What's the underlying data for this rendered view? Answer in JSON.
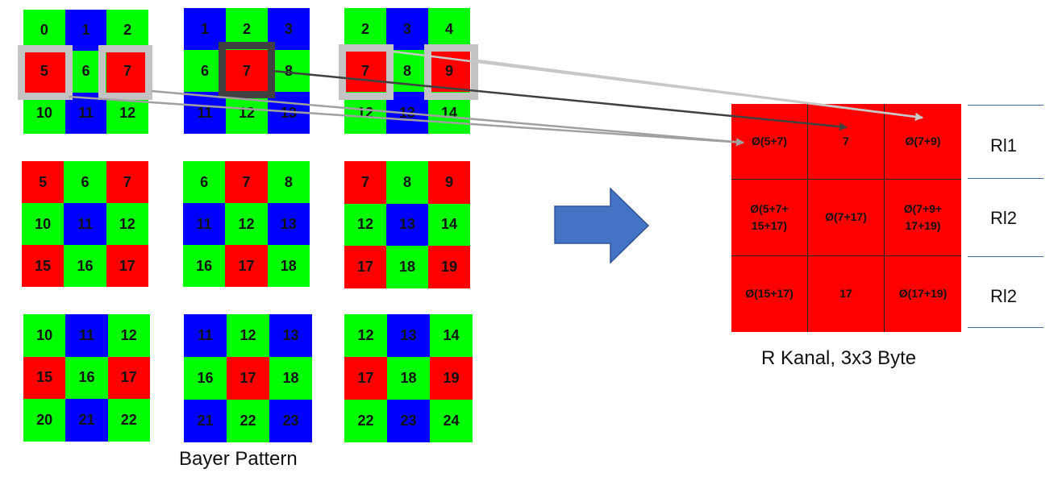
{
  "bayer_grids": [
    {
      "values": [
        "0",
        "1",
        "2",
        "5",
        "6",
        "7",
        "10",
        "11",
        "12"
      ],
      "colors": "GBGRGRGBG"
    },
    {
      "values": [
        "1",
        "2",
        "3",
        "6",
        "7",
        "8",
        "11",
        "12",
        "13"
      ],
      "colors": "BGBGRGBGB"
    },
    {
      "values": [
        "2",
        "3",
        "4",
        "7",
        "8",
        "9",
        "12",
        "13",
        "14"
      ],
      "colors": "GBGRGRGBG"
    },
    {
      "values": [
        "5",
        "6",
        "7",
        "10",
        "11",
        "12",
        "15",
        "16",
        "17"
      ],
      "colors": "RGRGBGRGR"
    },
    {
      "values": [
        "6",
        "7",
        "8",
        "11",
        "12",
        "13",
        "16",
        "17",
        "18"
      ],
      "colors": "GRGBGBGRG"
    },
    {
      "values": [
        "7",
        "8",
        "9",
        "12",
        "13",
        "14",
        "17",
        "18",
        "19"
      ],
      "colors": "RGRGBGRGR"
    },
    {
      "values": [
        "10",
        "11",
        "12",
        "15",
        "16",
        "17",
        "20",
        "21",
        "22"
      ],
      "colors": "GBGRGRGBG"
    },
    {
      "values": [
        "11",
        "12",
        "13",
        "16",
        "17",
        "18",
        "21",
        "22",
        "23"
      ],
      "colors": "BGBGRGBGB"
    },
    {
      "values": [
        "12",
        "13",
        "14",
        "17",
        "18",
        "19",
        "22",
        "23",
        "24"
      ],
      "colors": "GBGRGRGBG"
    }
  ],
  "bayer_caption": "Bayer Pattern",
  "result": {
    "cells": [
      "Ø(5+7)",
      "7",
      "Ø(7+9)",
      "Ø(5+7+\n15+17)",
      "Ø(7+17)",
      "Ø(7+9+\n17+19)",
      "Ø(15+17)",
      "17",
      "Ø(17+19)"
    ],
    "caption": "R Kanal, 3x3 Byte",
    "row_labels": [
      "Rl1",
      "Rl2",
      "Rl2"
    ]
  },
  "colors": {
    "red": "#ff0000",
    "green": "#00ff00",
    "blue": "#0000ff",
    "arrow_fill": "#4472c4",
    "highlight_light": "#c3c3c3",
    "highlight_dark": "#404040"
  }
}
